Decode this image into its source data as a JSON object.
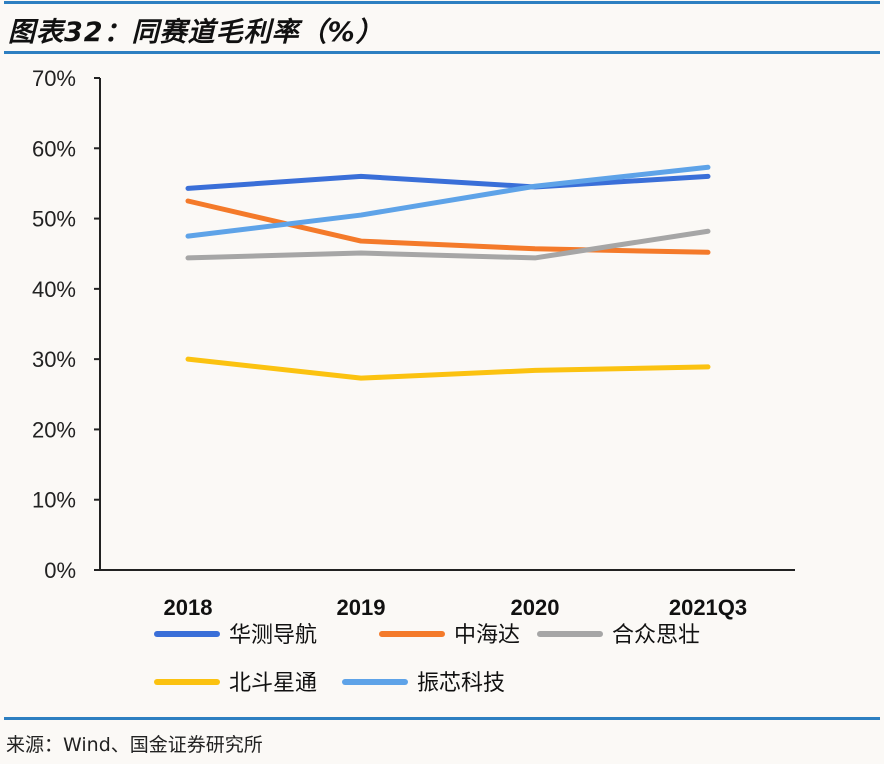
{
  "title": "图表32：同赛道毛利率（%）",
  "source": "来源：Wind、国金证券研究所",
  "chart_data": {
    "type": "line",
    "title": "图表32：同赛道毛利率（%）",
    "categories": [
      "2018",
      "2019",
      "2020",
      "2021Q3"
    ],
    "y_ticks": [
      "0%",
      "10%",
      "20%",
      "30%",
      "40%",
      "50%",
      "60%",
      "70%"
    ],
    "ylim": [
      0,
      70
    ],
    "unit": "%",
    "grid": false,
    "legend_placement": "bottom",
    "series": [
      {
        "name": "华测导航",
        "color": "#3a6fd8",
        "values": [
          54.3,
          56.0,
          54.5,
          56.0
        ]
      },
      {
        "name": "中海达",
        "color": "#f47a2a",
        "values": [
          52.5,
          46.8,
          45.7,
          45.2
        ]
      },
      {
        "name": "合众思壮",
        "color": "#a6a6a6",
        "values": [
          44.4,
          45.1,
          44.4,
          48.2
        ]
      },
      {
        "name": "北斗星通",
        "color": "#fbc210",
        "values": [
          30.0,
          27.3,
          28.4,
          28.9
        ]
      },
      {
        "name": "振芯科技",
        "color": "#5ea3e8",
        "values": [
          47.5,
          50.5,
          54.6,
          57.3
        ]
      }
    ]
  }
}
